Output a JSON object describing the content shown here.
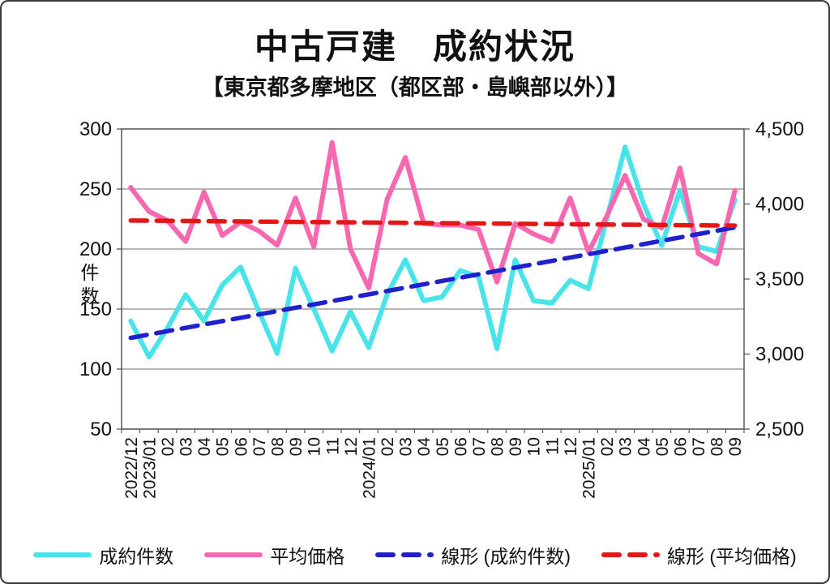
{
  "page": {
    "title": "中古戸建　成約状況",
    "subtitle": "【東京都多摩地区（都区部・島嶼部以外）】"
  },
  "chart_data": {
    "type": "line",
    "title": "中古戸建　成約状況",
    "subtitle": "【東京都多摩地区（都区部・島嶼部以外）】",
    "grid": true,
    "legend_position": "bottom",
    "categories": [
      "2022/12",
      "2023/01",
      "02",
      "03",
      "04",
      "05",
      "06",
      "07",
      "08",
      "09",
      "10",
      "11",
      "12",
      "2024/01",
      "02",
      "03",
      "04",
      "05",
      "06",
      "07",
      "08",
      "09",
      "10",
      "11",
      "12",
      "2025/01",
      "02",
      "03",
      "04",
      "05",
      "06",
      "07",
      "08",
      "09"
    ],
    "left_axis": {
      "label": "件数",
      "min": 50,
      "max": 300,
      "tick_step": 50,
      "ticks": [
        "300",
        "250",
        "200",
        "150",
        "100",
        "50"
      ]
    },
    "right_axis": {
      "min": 2500,
      "max": 4500,
      "tick_step": 500,
      "ticks": [
        "4,500",
        "4,000",
        "3,500",
        "3,000",
        "2,500"
      ]
    },
    "series": [
      {
        "name": "成約件数",
        "type": "line",
        "axis": "left",
        "color": "#49E3EA",
        "dash": null,
        "values": [
          140,
          110,
          134,
          162,
          140,
          170,
          185,
          148,
          113,
          184,
          150,
          115,
          148,
          118,
          162,
          191,
          157,
          160,
          182,
          177,
          117,
          191,
          157,
          155,
          174,
          167,
          225,
          285,
          238,
          203,
          249,
          202,
          198,
          241
        ]
      },
      {
        "name": "平均価格",
        "type": "line",
        "axis": "right",
        "color": "#F768B0",
        "dash": null,
        "values": [
          4110,
          3950,
          3890,
          3750,
          4080,
          3790,
          3880,
          3820,
          3725,
          4040,
          3715,
          4410,
          3700,
          3440,
          4030,
          4310,
          3870,
          3860,
          3860,
          3830,
          3480,
          3870,
          3800,
          3750,
          4040,
          3680,
          3920,
          4190,
          3900,
          3840,
          4240,
          3670,
          3600,
          4090
        ]
      },
      {
        "name": "線形 (成約件数)",
        "type": "trend",
        "axis": "left",
        "color": "#2020CD",
        "dash": [
          20,
          12
        ],
        "from": 126,
        "to": 218
      },
      {
        "name": "線形 (平均価格)",
        "type": "trend",
        "axis": "right",
        "color": "#E41616",
        "dash": [
          20,
          12
        ],
        "from": 3890,
        "to": 3856
      }
    ]
  }
}
